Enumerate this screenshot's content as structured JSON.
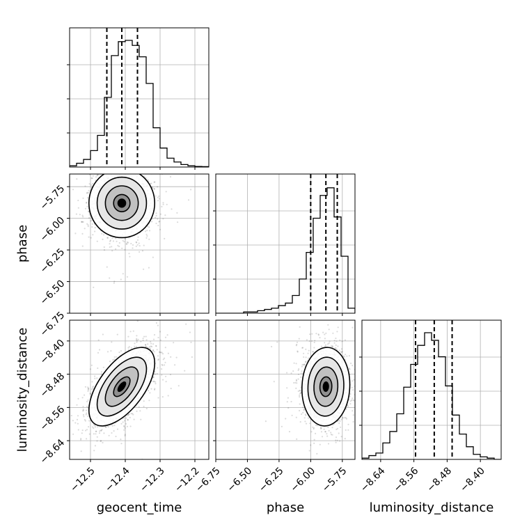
{
  "chart_data": {
    "type": "corner",
    "parameters": [
      {
        "name": "geocent_time",
        "xlabel": "geocent_time",
        "range": [
          -12.56,
          -12.16
        ],
        "ticks": [
          -12.5,
          -12.4,
          -12.3,
          -12.2
        ],
        "tick_labels": [
          "−12.5",
          "−12.4",
          "−12.3",
          "−12.2"
        ],
        "quantiles": [
          -12.453,
          -12.41,
          -12.365
        ],
        "histogram": [
          0.01,
          0.03,
          0.06,
          0.13,
          0.25,
          0.55,
          0.88,
          0.99,
          1.0,
          0.96,
          0.87,
          0.66,
          0.31,
          0.15,
          0.07,
          0.04,
          0.02,
          0.01,
          0.005,
          0.003
        ]
      },
      {
        "name": "phase",
        "xlabel": "phase",
        "ylabel": "phase",
        "range": [
          -6.75,
          -5.65
        ],
        "ticks": [
          -6.75,
          -6.5,
          -6.25,
          -6.0,
          -5.75
        ],
        "tick_labels": [
          "−6.75",
          "−6.50",
          "−6.25",
          "−6.00",
          "−5.75"
        ],
        "quantiles": [
          -6.0,
          -5.88,
          -5.79
        ],
        "histogram": [
          0.0,
          0.0,
          0.0,
          0.0,
          0.01,
          0.01,
          0.02,
          0.03,
          0.04,
          0.06,
          0.08,
          0.14,
          0.27,
          0.48,
          0.75,
          0.93,
          0.99,
          0.76,
          0.45,
          0.04
        ]
      },
      {
        "name": "luminosity_distance",
        "xlabel": "luminosity_distance",
        "ylabel": "luminosity_distance",
        "range": [
          -8.685,
          -8.35
        ],
        "ticks": [
          -8.64,
          -8.56,
          -8.48,
          -8.4
        ],
        "tick_labels": [
          "−8.64",
          "−8.56",
          "−8.48",
          "−8.40"
        ],
        "quantiles": [
          -8.556,
          -8.511,
          -8.468
        ],
        "histogram": [
          0.01,
          0.03,
          0.05,
          0.13,
          0.22,
          0.36,
          0.57,
          0.75,
          0.9,
          1.0,
          0.94,
          0.81,
          0.58,
          0.35,
          0.2,
          0.1,
          0.04,
          0.02,
          0.01,
          0.0
        ]
      }
    ],
    "pairs": [
      {
        "x": "geocent_time",
        "y": "phase",
        "mean": [
          -12.41,
          -5.88
        ],
        "sigma": [
          0.045,
          0.13
        ],
        "corr": 0.0
      },
      {
        "x": "geocent_time",
        "y": "luminosity_distance",
        "mean": [
          -12.41,
          -8.51
        ],
        "sigma": [
          0.045,
          0.045
        ],
        "corr": 0.6
      },
      {
        "x": "phase",
        "y": "luminosity_distance",
        "mean": [
          -5.88,
          -8.51
        ],
        "sigma": [
          0.09,
          0.045
        ],
        "corr": 0.05
      }
    ],
    "grid": true,
    "contour_levels_sigma": [
      0.5,
      1.0,
      1.5,
      2.0
    ]
  }
}
